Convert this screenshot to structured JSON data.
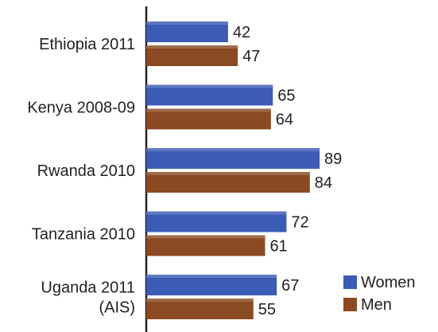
{
  "chart_data": {
    "type": "bar",
    "orientation": "horizontal",
    "title": "",
    "xlabel": "",
    "ylabel": "",
    "grid": false,
    "legend_position": "bottom-right",
    "categories": [
      [
        "Ethiopia 2011"
      ],
      [
        "Kenya 2008-09"
      ],
      [
        "Rwanda 2010"
      ],
      [
        "Tanzania 2010"
      ],
      [
        "Uganda 2011",
        "(AIS)"
      ]
    ],
    "series": [
      {
        "name": "Women",
        "color": "#3b5bb5",
        "values": [
          42,
          65,
          89,
          72,
          67
        ]
      },
      {
        "name": "Men",
        "color": "#8a4a22",
        "values": [
          47,
          64,
          84,
          61,
          55
        ]
      }
    ],
    "xlim": [
      0,
      100
    ]
  }
}
